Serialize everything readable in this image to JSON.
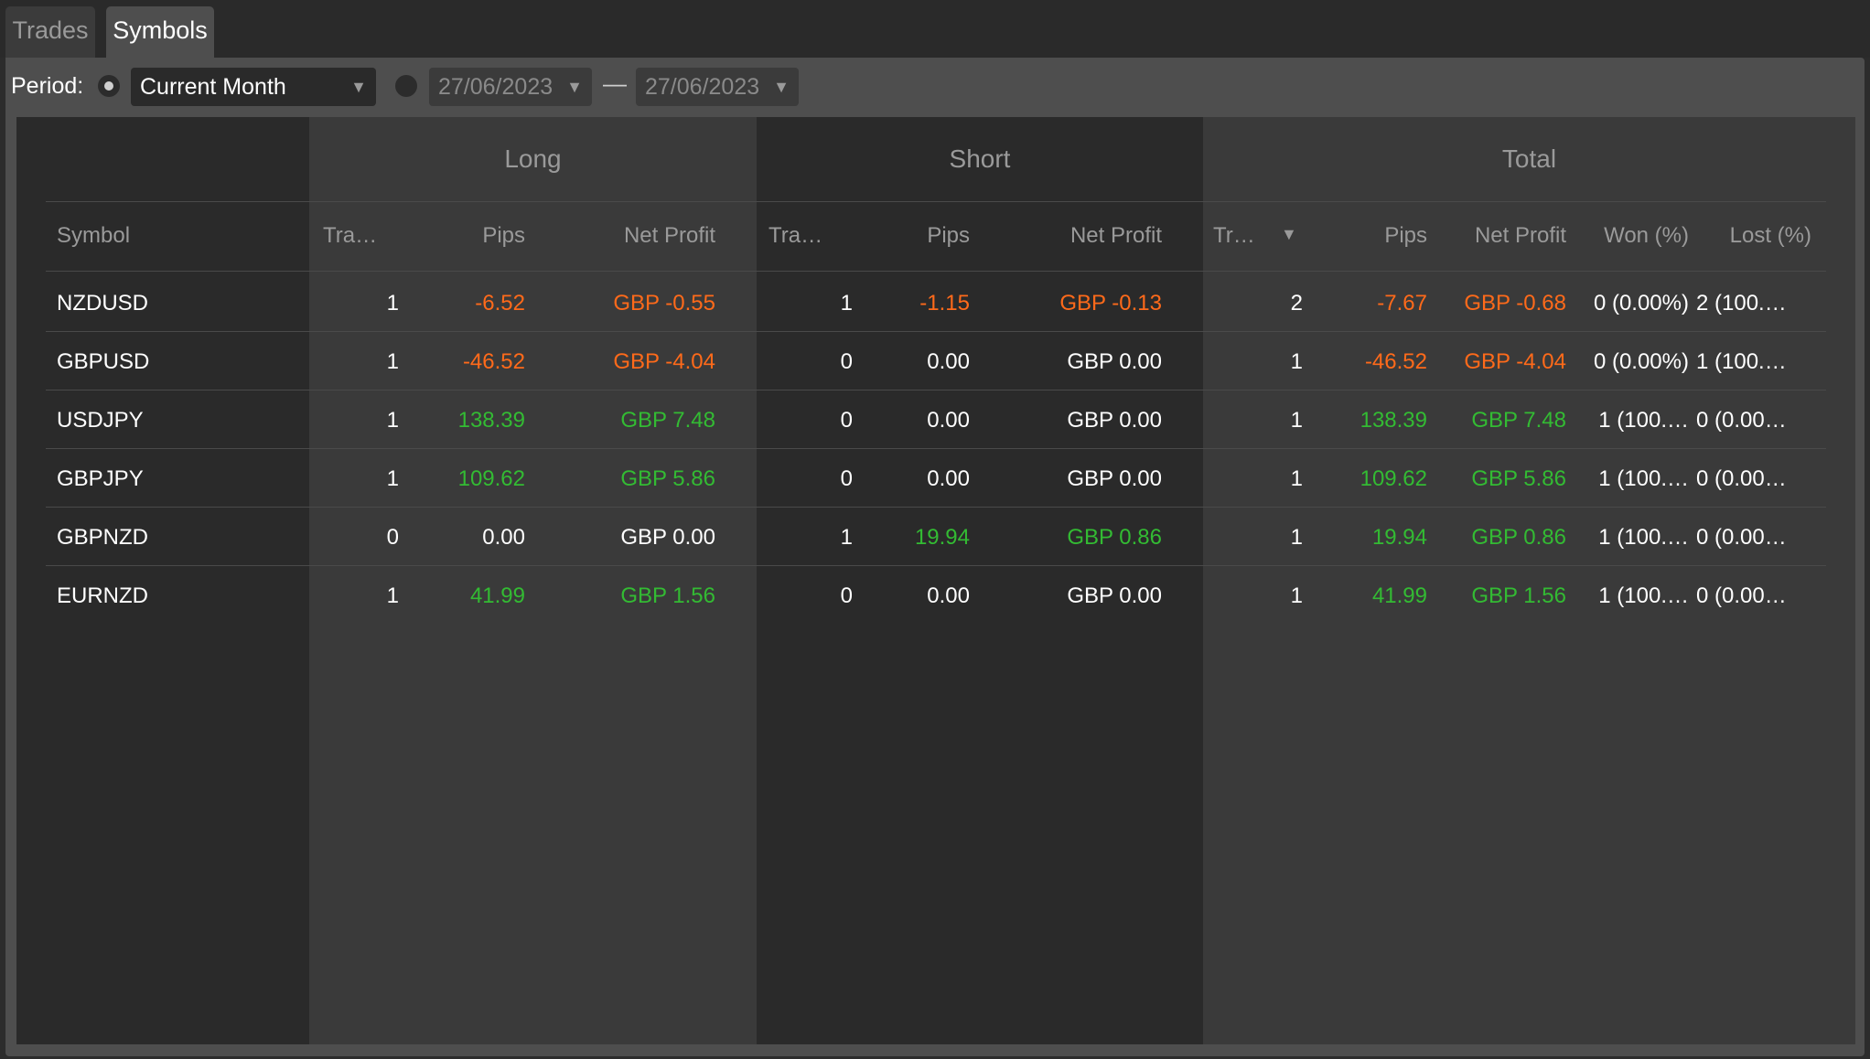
{
  "tabs": [
    {
      "label": "Trades",
      "active": false
    },
    {
      "label": "Symbols",
      "active": true
    }
  ],
  "period": {
    "label": "Period:",
    "selected": "Current Month",
    "date_from": "27/06/2023",
    "date_to": "27/06/2023",
    "separator": "—"
  },
  "groups": {
    "long": "Long",
    "short": "Short",
    "total": "Total"
  },
  "columns": {
    "symbol": "Symbol",
    "long_trades": "Tra…",
    "long_pips": "Pips",
    "long_net": "Net Profit",
    "short_trades": "Tra…",
    "short_pips": "Pips",
    "short_net": "Net Profit",
    "total_trades": "Tr…",
    "total_pips": "Pips",
    "total_net": "Net Profit",
    "won": "Won (%)",
    "lost": "Lost (%)"
  },
  "colors": {
    "negative": "#ff6a1a",
    "positive": "#33bb33",
    "neutral": "#ffffff"
  },
  "rows": [
    {
      "symbol": "NZDUSD",
      "long_trades": "1",
      "long_pips": "-6.52",
      "long_net": "GBP -0.55",
      "short_trades": "1",
      "short_pips": "-1.15",
      "short_net": "GBP -0.13",
      "total_trades": "2",
      "total_pips": "-7.67",
      "total_net": "GBP -0.68",
      "won": "0 (0.00%)",
      "lost": "2 (100.…",
      "long_sign": "neg",
      "short_sign": "neg",
      "total_sign": "neg"
    },
    {
      "symbol": "GBPUSD",
      "long_trades": "1",
      "long_pips": "-46.52",
      "long_net": "GBP -4.04",
      "short_trades": "0",
      "short_pips": "0.00",
      "short_net": "GBP 0.00",
      "total_trades": "1",
      "total_pips": "-46.52",
      "total_net": "GBP -4.04",
      "won": "0 (0.00%)",
      "lost": "1 (100.…",
      "long_sign": "neg",
      "short_sign": "neu",
      "total_sign": "neg"
    },
    {
      "symbol": "USDJPY",
      "long_trades": "1",
      "long_pips": "138.39",
      "long_net": "GBP 7.48",
      "short_trades": "0",
      "short_pips": "0.00",
      "short_net": "GBP 0.00",
      "total_trades": "1",
      "total_pips": "138.39",
      "total_net": "GBP 7.48",
      "won": "1 (100.…",
      "lost": "0 (0.00…",
      "long_sign": "pos",
      "short_sign": "neu",
      "total_sign": "pos"
    },
    {
      "symbol": "GBPJPY",
      "long_trades": "1",
      "long_pips": "109.62",
      "long_net": "GBP 5.86",
      "short_trades": "0",
      "short_pips": "0.00",
      "short_net": "GBP 0.00",
      "total_trades": "1",
      "total_pips": "109.62",
      "total_net": "GBP 5.86",
      "won": "1 (100.…",
      "lost": "0 (0.00…",
      "long_sign": "pos",
      "short_sign": "neu",
      "total_sign": "pos"
    },
    {
      "symbol": "GBPNZD",
      "long_trades": "0",
      "long_pips": "0.00",
      "long_net": "GBP 0.00",
      "short_trades": "1",
      "short_pips": "19.94",
      "short_net": "GBP 0.86",
      "total_trades": "1",
      "total_pips": "19.94",
      "total_net": "GBP 0.86",
      "won": "1 (100.…",
      "lost": "0 (0.00…",
      "long_sign": "neu",
      "short_sign": "pos",
      "total_sign": "pos"
    },
    {
      "symbol": "EURNZD",
      "long_trades": "1",
      "long_pips": "41.99",
      "long_net": "GBP 1.56",
      "short_trades": "0",
      "short_pips": "0.00",
      "short_net": "GBP 0.00",
      "total_trades": "1",
      "total_pips": "41.99",
      "total_net": "GBP 1.56",
      "won": "1 (100.…",
      "lost": "0 (0.00…",
      "long_sign": "pos",
      "short_sign": "neu",
      "total_sign": "pos"
    }
  ]
}
